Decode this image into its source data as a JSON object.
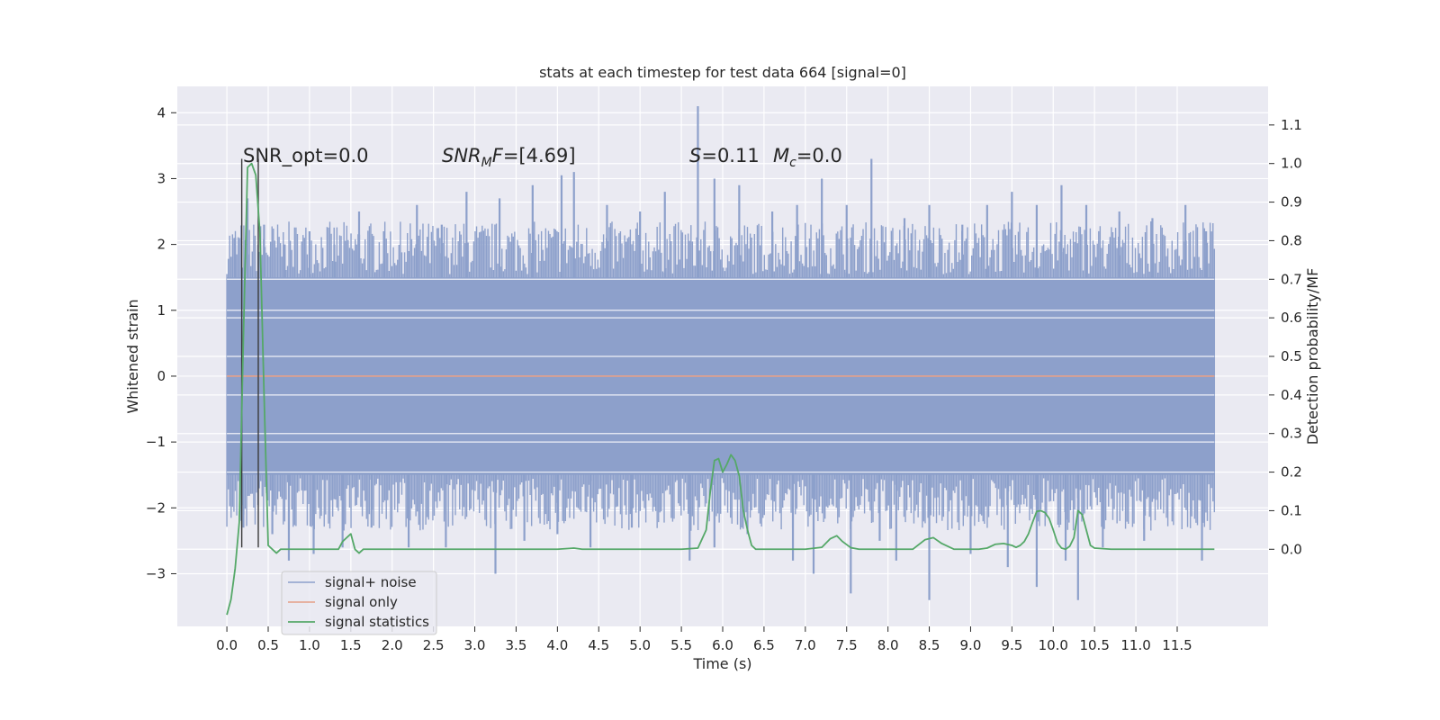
{
  "chart_data": {
    "type": "line",
    "title": "stats at each timestep for test data 664 [signal=0]",
    "xlabel": "Time (s)",
    "ylabel": "Whitened strain",
    "y2label": "Detection probability/MF",
    "xlim": [
      -0.6,
      12.6
    ],
    "ylim": [
      -3.8,
      4.4
    ],
    "y2lim": [
      -0.2,
      1.2
    ],
    "grid": true,
    "legend_position": "lower-left",
    "x_ticks": [
      "0.0",
      "0.5",
      "1.0",
      "1.5",
      "2.0",
      "2.5",
      "3.0",
      "3.5",
      "4.0",
      "4.5",
      "5.0",
      "5.5",
      "6.0",
      "6.5",
      "7.0",
      "7.5",
      "8.0",
      "8.5",
      "9.0",
      "9.5",
      "10.0",
      "10.5",
      "11.0",
      "11.5"
    ],
    "y_ticks": [
      "4",
      "3",
      "2",
      "1",
      "0",
      "−1",
      "−2",
      "−3"
    ],
    "y2_ticks": [
      "1.1",
      "1.0",
      "0.9",
      "0.8",
      "0.7",
      "0.6",
      "0.5",
      "0.4",
      "0.3",
      "0.2",
      "0.1",
      "0.0"
    ],
    "annotations": {
      "snr_opt": "SNR_opt=0.0",
      "snr_mf": "=[4.69]",
      "s_val": "=0.11",
      "mc_val": "=0.0"
    },
    "markers_x": [
      0.18,
      0.38
    ],
    "series": [
      {
        "name": "signal+ noise",
        "color": "#8da0cb",
        "axis": "left",
        "band": {
          "x_start": 0.0,
          "x_end": 11.95,
          "core_low": -1.5,
          "core_high": 1.5
        },
        "spikes": [
          [
            0.1,
            2.1
          ],
          [
            0.25,
            2.7
          ],
          [
            0.45,
            2.3
          ],
          [
            0.7,
            2.0
          ],
          [
            1.0,
            2.2
          ],
          [
            1.3,
            2.0
          ],
          [
            1.6,
            2.5
          ],
          [
            1.9,
            2.2
          ],
          [
            2.3,
            2.6
          ],
          [
            2.6,
            2.3
          ],
          [
            2.9,
            2.8
          ],
          [
            3.3,
            2.7
          ],
          [
            3.7,
            2.9
          ],
          [
            4.05,
            3.05
          ],
          [
            4.2,
            3.1
          ],
          [
            4.6,
            2.6
          ],
          [
            5.0,
            2.5
          ],
          [
            5.3,
            2.8
          ],
          [
            5.7,
            4.1
          ],
          [
            5.9,
            3.0
          ],
          [
            6.2,
            2.9
          ],
          [
            6.6,
            2.5
          ],
          [
            6.9,
            2.6
          ],
          [
            7.2,
            3.0
          ],
          [
            7.5,
            2.6
          ],
          [
            7.8,
            3.3
          ],
          [
            8.2,
            2.4
          ],
          [
            8.5,
            2.6
          ],
          [
            8.9,
            2.3
          ],
          [
            9.2,
            2.6
          ],
          [
            9.5,
            2.8
          ],
          [
            9.8,
            2.6
          ],
          [
            10.1,
            2.9
          ],
          [
            10.4,
            2.6
          ],
          [
            10.8,
            2.5
          ],
          [
            11.2,
            2.4
          ],
          [
            11.6,
            2.6
          ],
          [
            11.85,
            2.2
          ],
          [
            0.2,
            -2.3
          ],
          [
            0.55,
            -2.4
          ],
          [
            0.75,
            -2.8
          ],
          [
            1.05,
            -2.7
          ],
          [
            1.4,
            -2.6
          ],
          [
            1.75,
            -2.3
          ],
          [
            2.2,
            -2.6
          ],
          [
            2.65,
            -2.6
          ],
          [
            3.25,
            -3.0
          ],
          [
            3.6,
            -2.5
          ],
          [
            4.0,
            -2.4
          ],
          [
            4.4,
            -2.6
          ],
          [
            4.9,
            -2.3
          ],
          [
            5.6,
            -2.8
          ],
          [
            5.9,
            -2.6
          ],
          [
            6.3,
            -2.4
          ],
          [
            6.85,
            -2.8
          ],
          [
            7.1,
            -3.0
          ],
          [
            7.55,
            -3.3
          ],
          [
            7.9,
            -2.5
          ],
          [
            8.1,
            -2.8
          ],
          [
            8.5,
            -3.4
          ],
          [
            9.0,
            -2.7
          ],
          [
            9.45,
            -2.9
          ],
          [
            9.8,
            -3.2
          ],
          [
            10.15,
            -2.8
          ],
          [
            10.3,
            -3.4
          ],
          [
            10.6,
            -2.6
          ],
          [
            11.1,
            -2.5
          ],
          [
            11.8,
            -2.8
          ]
        ]
      },
      {
        "name": "signal only",
        "color": "#e5a088",
        "axis": "left",
        "x": [
          0.0,
          11.95
        ],
        "y": [
          0.0,
          0.0
        ]
      },
      {
        "name": "signal statistics",
        "color": "#55a868",
        "axis": "right",
        "x": [
          0.0,
          0.05,
          0.1,
          0.15,
          0.2,
          0.25,
          0.3,
          0.35,
          0.4,
          0.45,
          0.5,
          0.55,
          0.6,
          0.65,
          0.8,
          1.0,
          1.2,
          1.35,
          1.4,
          1.5,
          1.55,
          1.6,
          1.65,
          1.75,
          2.0,
          3.0,
          4.0,
          4.2,
          4.3,
          4.4,
          5.0,
          5.5,
          5.7,
          5.8,
          5.85,
          5.9,
          5.95,
          6.0,
          6.05,
          6.1,
          6.15,
          6.2,
          6.25,
          6.3,
          6.35,
          6.4,
          6.45,
          6.5,
          6.55,
          6.6,
          6.65,
          6.7,
          6.8,
          7.0,
          7.2,
          7.3,
          7.38,
          7.45,
          7.55,
          7.65,
          8.0,
          8.3,
          8.45,
          8.55,
          8.65,
          8.8,
          9.1,
          9.2,
          9.3,
          9.4,
          9.5,
          9.55,
          9.6,
          9.65,
          9.7,
          9.75,
          9.8,
          9.85,
          9.9,
          9.95,
          10.0,
          10.05,
          10.1,
          10.15,
          10.2,
          10.25,
          10.3,
          10.35,
          10.4,
          10.45,
          10.5,
          10.7,
          11.0,
          11.5,
          11.95
        ],
        "y": [
          -0.17,
          -0.13,
          -0.05,
          0.07,
          0.55,
          0.99,
          1.0,
          0.97,
          0.82,
          0.4,
          0.01,
          0.0,
          -0.01,
          0.0,
          0.0,
          0.0,
          0.0,
          0.0,
          0.02,
          0.04,
          0.0,
          -0.01,
          0.0,
          0.0,
          0.0,
          0.0,
          0.0,
          0.003,
          0.0,
          0.0,
          0.0,
          0.0,
          0.003,
          0.05,
          0.15,
          0.23,
          0.235,
          0.2,
          0.22,
          0.245,
          0.23,
          0.19,
          0.1,
          0.05,
          0.01,
          0.0,
          0.0,
          0.0,
          0.0,
          0.0,
          0.0,
          0.0,
          0.0,
          0.0,
          0.005,
          0.027,
          0.035,
          0.02,
          0.004,
          0.0,
          0.0,
          0.0,
          0.025,
          0.03,
          0.015,
          0.0,
          0.0,
          0.003,
          0.013,
          0.015,
          0.01,
          0.005,
          0.01,
          0.02,
          0.04,
          0.07,
          0.098,
          0.1,
          0.095,
          0.08,
          0.05,
          0.017,
          0.003,
          0.0,
          0.008,
          0.03,
          0.1,
          0.09,
          0.05,
          0.01,
          0.003,
          0.0,
          0.0,
          0.0,
          0.0
        ]
      }
    ]
  }
}
